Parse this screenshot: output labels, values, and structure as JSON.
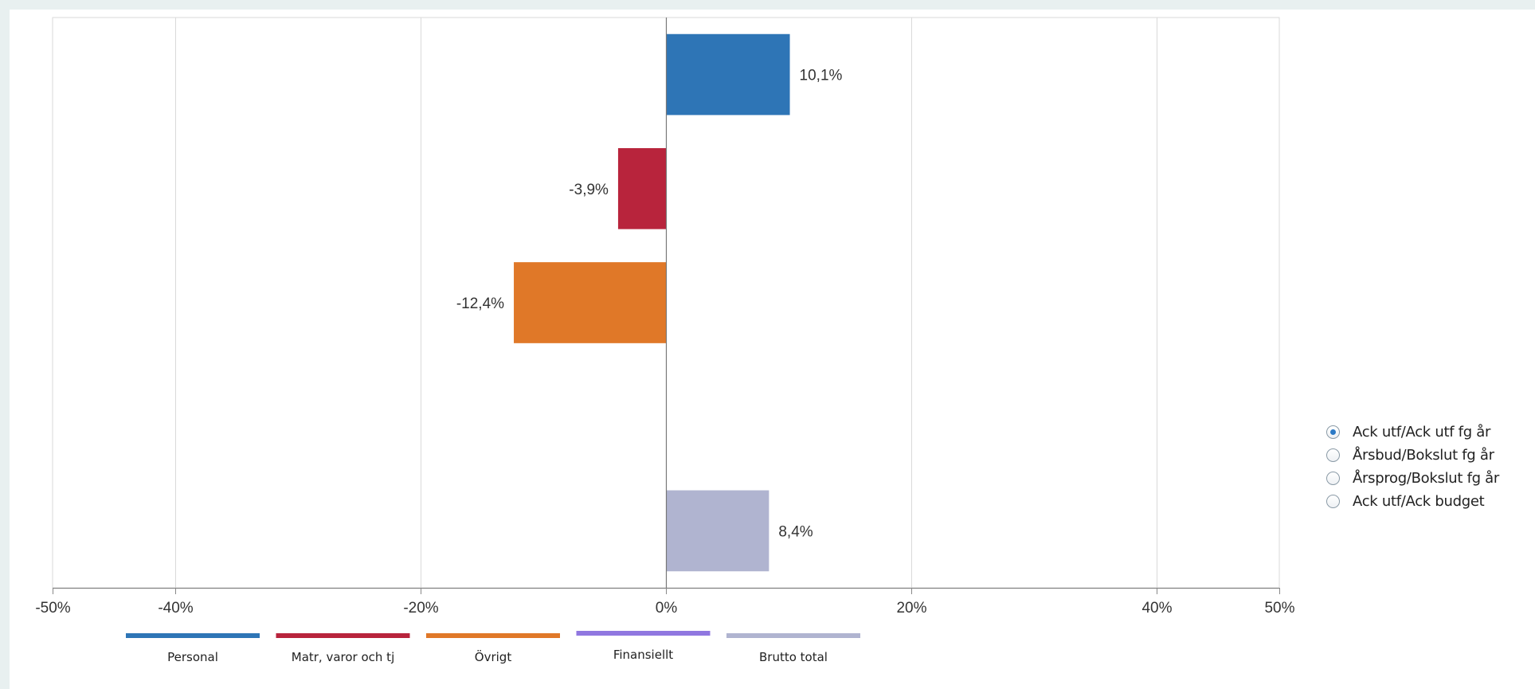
{
  "chart_data": {
    "type": "bar",
    "orientation": "horizontal",
    "categories": [
      "Personal",
      "Matr, varor och tj",
      "Övrigt",
      "Finansiellt",
      "Brutto total"
    ],
    "values": [
      10.1,
      -3.9,
      -12.4,
      null,
      8.4
    ],
    "data_labels": [
      "10,1%",
      "-3,9%",
      "-12,4%",
      "",
      "8,4%"
    ],
    "colors": [
      "#2e75b6",
      "#b8243c",
      "#e07828",
      "#9077e0",
      "#b0b4d0"
    ],
    "xlim": [
      -50,
      50
    ],
    "x_ticks": [
      {
        "value": -50,
        "label": "-50%"
      },
      {
        "value": -40,
        "label": "-40%"
      },
      {
        "value": -20,
        "label": "-20%"
      },
      {
        "value": 0,
        "label": "0%"
      },
      {
        "value": 20,
        "label": "20%"
      },
      {
        "value": 40,
        "label": "40%"
      },
      {
        "value": 50,
        "label": "50%"
      }
    ],
    "grid": true,
    "legend_position": "bottom",
    "legend": [
      "Personal",
      "Matr, varor och tj",
      "Övrigt",
      "Finansiellt",
      "Brutto total"
    ]
  },
  "options": [
    {
      "label": "Ack utf/Ack utf fg år",
      "checked": true
    },
    {
      "label": "Årsbud/Bokslut fg år",
      "checked": false
    },
    {
      "label": "Årsprog/Bokslut fg år",
      "checked": false
    },
    {
      "label": "Ack utf/Ack budget",
      "checked": false
    }
  ]
}
